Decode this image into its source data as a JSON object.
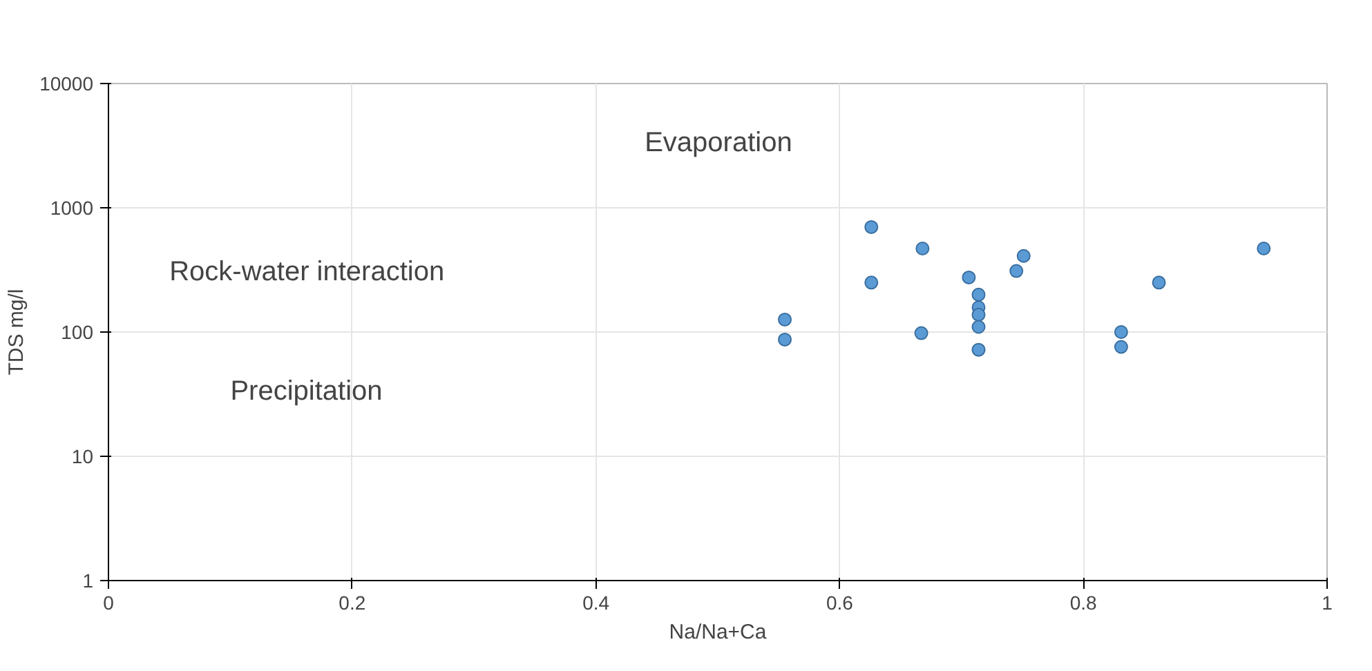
{
  "chart_data": {
    "type": "scatter",
    "xlabel": "Na/Na+Ca",
    "ylabel": "TDS mg/l",
    "x": [
      0.555,
      0.555,
      0.626,
      0.626,
      0.668,
      0.667,
      0.706,
      0.714,
      0.714,
      0.714,
      0.714,
      0.714,
      0.745,
      0.751,
      0.831,
      0.831,
      0.862,
      0.948
    ],
    "series": [
      {
        "color": "#5b9bd5",
        "values": [
          126,
          87,
          700,
          250,
          470,
          98,
          275,
          200,
          158,
          138,
          110,
          72,
          310,
          410,
          100,
          76,
          250,
          470
        ]
      }
    ],
    "xlim": [
      0,
      1
    ],
    "xticks": [
      0,
      0.2,
      0.4,
      0.6,
      0.8,
      1
    ],
    "ylim": [
      1,
      10000
    ],
    "yticks": [
      1,
      10,
      100,
      1000,
      10000
    ],
    "log": "y",
    "grid": true,
    "marker": "circle",
    "annotations": [
      "Evaporation",
      "Rock-water interaction",
      "Precipitation"
    ]
  }
}
